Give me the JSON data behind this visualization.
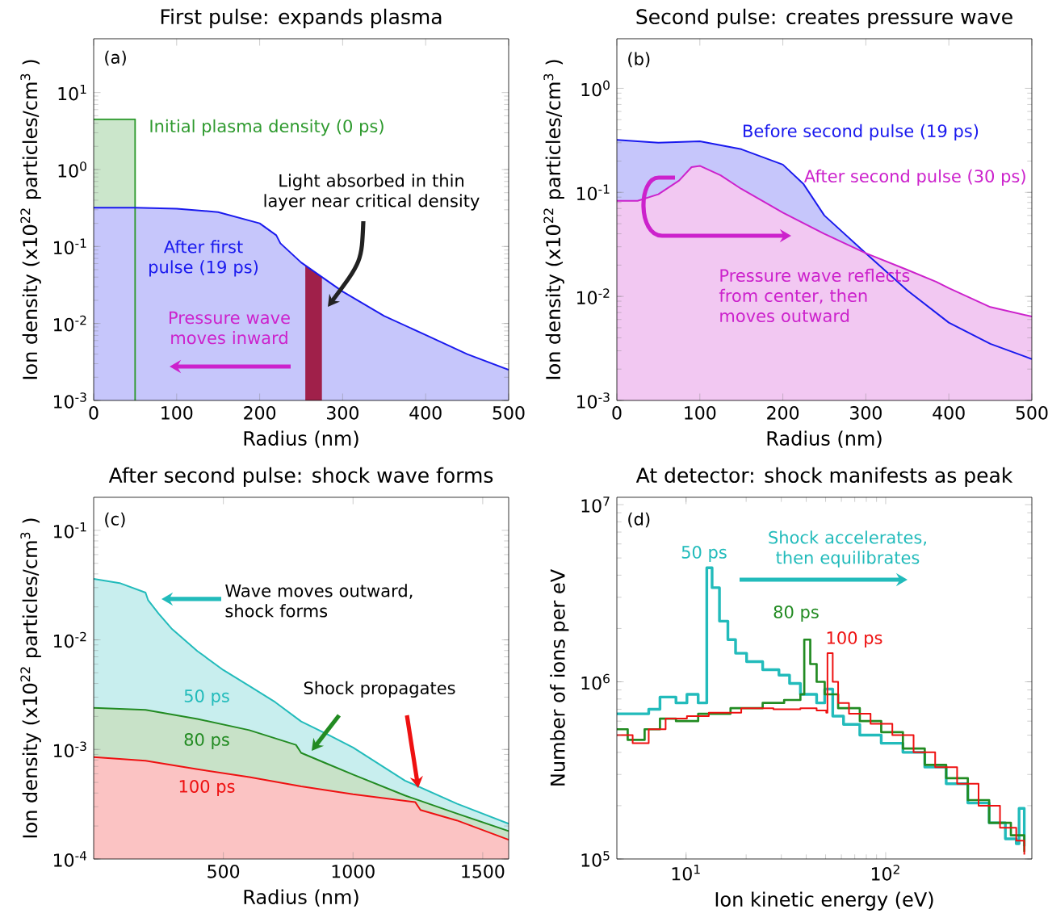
{
  "chart_data": [
    {
      "type": "area",
      "title": "First pulse: expands plasma",
      "xlabel": "Radius (nm)",
      "ylabel": "Ion density (x10$^{22}$ particles/cm$^{3}$ )",
      "log": "y",
      "xlim": [
        0,
        500
      ],
      "ylim": [
        0.001,
        50
      ],
      "xticks": [
        0,
        100,
        200,
        300,
        400,
        500
      ],
      "yticks": [
        {
          "value": 0.001,
          "label": "10$^{-3}$"
        },
        {
          "value": 0.01,
          "label": "10$^{-2}$"
        },
        {
          "value": 0.1,
          "label": "10$^{-1}$"
        },
        {
          "value": 1,
          "label": "10$^{0}$"
        },
        {
          "value": 10,
          "label": "10$^{1}$"
        }
      ],
      "series": [
        {
          "name": "Initial plasma density (0 ps)",
          "color": "#2e9a2e",
          "x": [
            0,
            50,
            50
          ],
          "values": [
            4.5,
            4.5,
            0.001
          ]
        },
        {
          "name": "After first pulse (19 ps)",
          "color": "#1a1aee",
          "x": [
            0,
            50,
            100,
            150,
            200,
            220,
            225,
            250,
            300,
            350,
            400,
            450,
            500
          ],
          "values": [
            0.32,
            0.32,
            0.31,
            0.28,
            0.2,
            0.14,
            0.11,
            0.062,
            0.026,
            0.0125,
            0.0071,
            0.004,
            0.0025
          ]
        }
      ],
      "bands": [
        {
          "axis": "x",
          "from": 255,
          "to": 275,
          "color": "#a0204a"
        }
      ],
      "annotations": [
        "(a)",
        "Light absorbed in thin layer near critical density",
        "Pressure wave moves inward"
      ]
    },
    {
      "type": "area",
      "title": "Second pulse: creates pressure wave",
      "xlabel": "Radius (nm)",
      "ylabel": "Ion density (x10$^{22}$ particles/cm$^{3}$ )",
      "log": "y",
      "xlim": [
        0,
        500
      ],
      "ylim": [
        0.001,
        3
      ],
      "xticks": [
        0,
        100,
        200,
        300,
        400,
        500
      ],
      "yticks": [
        {
          "value": 0.001,
          "label": "10$^{-3}$"
        },
        {
          "value": 0.01,
          "label": "10$^{-2}$"
        },
        {
          "value": 0.1,
          "label": "10$^{-1}$"
        },
        {
          "value": 1,
          "label": "10$^{0}$"
        }
      ],
      "series": [
        {
          "name": "Before second pulse (19 ps)",
          "color": "#1a1aee",
          "x": [
            0,
            50,
            100,
            150,
            200,
            225,
            250,
            300,
            350,
            400,
            450,
            500
          ],
          "values": [
            0.32,
            0.3,
            0.31,
            0.26,
            0.185,
            0.12,
            0.06,
            0.026,
            0.0114,
            0.0056,
            0.0035,
            0.0025
          ]
        },
        {
          "name": "After second pulse (30 ps)",
          "color": "#cc22cc",
          "x": [
            0,
            25,
            50,
            75,
            90,
            100,
            125,
            150,
            200,
            250,
            300,
            350,
            385,
            400,
            450,
            500
          ],
          "values": [
            0.083,
            0.083,
            0.096,
            0.13,
            0.175,
            0.18,
            0.146,
            0.108,
            0.064,
            0.04,
            0.026,
            0.018,
            0.0138,
            0.012,
            0.0079,
            0.0064
          ]
        }
      ],
      "annotations": [
        "(b)",
        "Pressure wave reflects from center, then moves outward"
      ]
    },
    {
      "type": "area",
      "title": "After second pulse: shock wave forms",
      "xlabel": "Radius (nm)",
      "ylabel": "Ion density (x10$^{22}$ particles/cm$^{3}$ )",
      "log": "y",
      "xlim": [
        0,
        1600
      ],
      "ylim": [
        0.0001,
        0.2
      ],
      "xticks": [
        500,
        1000,
        1500
      ],
      "yticks": [
        {
          "value": 0.0001,
          "label": "10$^{-4}$"
        },
        {
          "value": 0.001,
          "label": "10$^{-3}$"
        },
        {
          "value": 0.01,
          "label": "10$^{-2}$"
        },
        {
          "value": 0.1,
          "label": "10$^{-1}$"
        }
      ],
      "series": [
        {
          "name": "50 ps",
          "color": "#22bbbb",
          "x": [
            0,
            100,
            200,
            210,
            250,
            300,
            400,
            500,
            600,
            700,
            800,
            900,
            1000,
            1200,
            1400,
            1600
          ],
          "values": [
            0.036,
            0.033,
            0.027,
            0.023,
            0.0174,
            0.0127,
            0.0079,
            0.0053,
            0.0038,
            0.0027,
            0.0018,
            0.00138,
            0.00104,
            0.00052,
            0.00032,
            0.00021
          ]
        },
        {
          "name": "80 ps",
          "color": "#228b22",
          "x": [
            0,
            200,
            400,
            600,
            780,
            800,
            900,
            1000,
            1200,
            1400,
            1600
          ],
          "values": [
            0.0024,
            0.0023,
            0.0019,
            0.0015,
            0.0011,
            0.00093,
            0.00074,
            0.00059,
            0.00038,
            0.00026,
            0.00018
          ]
        },
        {
          "name": "100 ps",
          "color": "#ee1111",
          "x": [
            0,
            200,
            400,
            600,
            800,
            1000,
            1240,
            1260,
            1400,
            1600
          ],
          "values": [
            0.00085,
            0.00079,
            0.00066,
            0.00056,
            0.00046,
            0.00039,
            0.00033,
            0.00028,
            0.000225,
            0.00015
          ]
        }
      ],
      "annotations": [
        "(c)",
        "Wave moves outward, shock forms",
        {
          "text": "Shock propagates",
          "x": 1250,
          "y": 0.00045
        }
      ]
    },
    {
      "type": "step",
      "title": "At detector: shock manifests as peak",
      "xlabel": "Ion kinetic energy (eV)",
      "ylabel": "Number of ions per eV",
      "log": "xy",
      "xlim": [
        4.5,
        540
      ],
      "ylim": [
        100000,
        11000000
      ],
      "xticks": [
        {
          "value": 10,
          "label": "10$^{1}$"
        },
        {
          "value": 100,
          "label": "10$^{2}$"
        }
      ],
      "yticks": [
        {
          "value": 100000,
          "label": "10$^{5}$"
        },
        {
          "value": 1000000,
          "label": "10$^{6}$"
        },
        {
          "value": 10000000,
          "label": "10$^{7}$"
        }
      ],
      "series": [
        {
          "name": "50 ps",
          "color": "#22bbbb",
          "x": [
            4.5,
            6.5,
            7.4,
            8.9,
            10.1,
            11.5,
            12.7,
            13.5,
            14.7,
            16.2,
            17.7,
            20.1,
            24.2,
            29.2,
            33,
            37.4,
            45.1,
            49.5,
            54.3,
            61.5,
            74.2,
            95,
            122,
            157,
            201,
            258,
            330,
            398,
            451,
            466,
            495
          ],
          "values": [
            660000,
            700000,
            820000,
            760000,
            850000,
            760000,
            4400000,
            3400000,
            2200000,
            1730000,
            1450000,
            1300000,
            1170000,
            1090000,
            980000,
            850000,
            760000,
            910000,
            640000,
            575000,
            500000,
            450000,
            400000,
            330000,
            266000,
            207000,
            160000,
            130000,
            122000,
            193000,
            118000
          ]
        },
        {
          "name": "80 ps",
          "color": "#228b22",
          "x": [
            4.5,
            5.1,
            6.2,
            7.4,
            8.9,
            11.5,
            16.7,
            24.2,
            31,
            37.4,
            39.1,
            41.9,
            45.1,
            49.5,
            57.8,
            74.2,
            95,
            122,
            157,
            201,
            258,
            330,
            424,
            495
          ],
          "values": [
            540000,
            470000,
            540000,
            620000,
            600000,
            660000,
            710000,
            760000,
            790000,
            850000,
            1730000,
            1260000,
            1000000,
            850000,
            710000,
            600000,
            520000,
            420000,
            340000,
            286000,
            215000,
            160000,
            136000,
            110000
          ]
        },
        {
          "name": "100 ps",
          "color": "#ee1111",
          "x": [
            4.5,
            5.4,
            6.5,
            7.9,
            10.1,
            13,
            18.9,
            27.4,
            37.4,
            45.1,
            50.4,
            51.1,
            54.3,
            57.8,
            65.5,
            84,
            108,
            138,
            177,
            228,
            292,
            374,
            451,
            495
          ],
          "values": [
            500000,
            450000,
            540000,
            620000,
            640000,
            670000,
            710000,
            700000,
            710000,
            690000,
            670000,
            1450000,
            1000000,
            760000,
            660000,
            580000,
            500000,
            400000,
            330000,
            266000,
            200000,
            150000,
            127000,
            106000
          ]
        }
      ],
      "annotations": [
        "(d)",
        "Shock accelerates, then equilibrates"
      ]
    }
  ]
}
